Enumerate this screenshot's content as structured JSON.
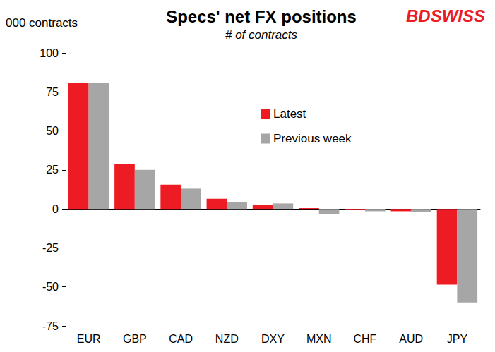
{
  "chart_data": {
    "type": "bar",
    "title": "Specs' net FX positions",
    "subtitle": "# of contracts",
    "y_label": "000 contracts",
    "annotations": [
      {
        "text": "BDSWISS"
      }
    ],
    "categories": [
      "EUR",
      "GBP",
      "CAD",
      "NZD",
      "DXY",
      "MXN",
      "CHF",
      "AUD",
      "JPY"
    ],
    "series": [
      {
        "name": "Latest",
        "color": "#ed1c24",
        "values": [
          81,
          29,
          15.5,
          6.5,
          2.5,
          0.5,
          -0.5,
          -1.5,
          -48.5
        ]
      },
      {
        "name": "Previous week",
        "color": "#a6a6a6",
        "values": [
          81,
          25,
          13,
          4.5,
          3.5,
          -3.5,
          -1.5,
          -2,
          -60
        ]
      }
    ],
    "ylim": [
      -75,
      100
    ],
    "yticks": [
      -75,
      -50,
      -25,
      0,
      25,
      50,
      75,
      100
    ],
    "grid": false,
    "legend": "upper right"
  }
}
